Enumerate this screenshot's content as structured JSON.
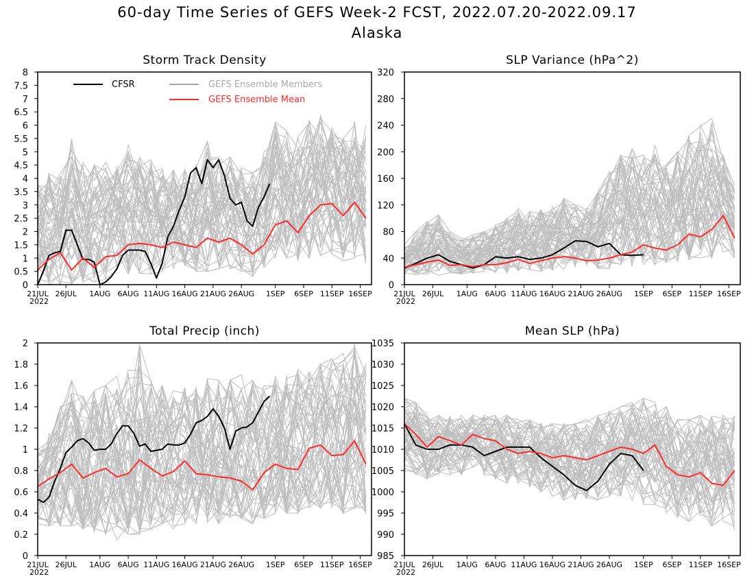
{
  "title": "60-day Time Series of GEFS Week-2 FCST, 2022.07.20-2022.09.17",
  "subtitle": "Alaska",
  "colors": {
    "cfsr": "#000000",
    "members": "#a9a9a9",
    "mean": "#ff2a2a"
  },
  "x_tick_labels": [
    "21JUL",
    "26JUL",
    "1AUG",
    "6AUG",
    "11AUG",
    "16AUG",
    "21AUG",
    "26AUG",
    "1SEP",
    "6SEP",
    "11SEP",
    "16SEP"
  ],
  "x_tick_days": [
    0,
    5,
    11,
    16,
    21,
    26,
    31,
    36,
    42,
    47,
    52,
    57
  ],
  "x_year_label": "2022",
  "legend": {
    "cfsr": "CFSR",
    "members": "GEFS Ensemble Members",
    "mean": "GEFS Ensemble Mean"
  },
  "chart_data": [
    {
      "type": "line",
      "title": "Storm Track Density",
      "ylim": [
        0,
        8
      ],
      "yticks": [
        "0",
        "0.5",
        "1",
        "1.5",
        "2",
        "2.5",
        "3",
        "3.5",
        "4",
        "4.5",
        "5",
        "5.5",
        "6",
        "6.5",
        "7",
        "7.5",
        "8"
      ],
      "ytick_values": [
        0,
        0.5,
        1,
        1.5,
        2,
        2.5,
        3,
        3.5,
        4,
        4.5,
        5,
        5.5,
        6,
        6.5,
        7,
        7.5,
        8
      ],
      "x_days": [
        0,
        2,
        4,
        6,
        8,
        10,
        12,
        14,
        16,
        18,
        20,
        22,
        24,
        26,
        28,
        30,
        32,
        34,
        36,
        38,
        40,
        42,
        44,
        46,
        48,
        50,
        52,
        54,
        56,
        58
      ],
      "series": [
        {
          "name": "CFSR",
          "x": [
            0,
            1,
            2,
            3,
            4,
            5,
            6,
            7,
            8,
            9,
            10,
            11,
            12,
            13,
            14,
            15,
            16,
            17,
            18,
            19,
            20,
            21,
            22,
            23,
            24,
            25,
            26,
            27,
            28,
            29,
            30,
            31,
            32,
            33,
            34,
            35,
            36,
            37,
            38,
            39,
            40,
            41,
            42
          ],
          "values": [
            0,
            0.5,
            1.1,
            1.2,
            1.25,
            2.05,
            2.05,
            1.5,
            0.95,
            0.95,
            0.85,
            0,
            0.1,
            0.3,
            0.6,
            1.1,
            1.3,
            1.3,
            1.3,
            1.25,
            0.8,
            0.25,
            0.8,
            1.8,
            2.2,
            2.8,
            3.3,
            4.2,
            4.4,
            3.8,
            4.7,
            4.4,
            4.7,
            4.1,
            3.25,
            3.0,
            3.1,
            2.4,
            2.2,
            2.9,
            3.3,
            3.8,
            null
          ]
        },
        {
          "name": "GEFS Ensemble Mean",
          "x": [
            0,
            2,
            4,
            6,
            8,
            10,
            12,
            14,
            16,
            18,
            20,
            22,
            24,
            26,
            28,
            30,
            32,
            34,
            36,
            38,
            40,
            42,
            44,
            46,
            48,
            50,
            52,
            54,
            56,
            58
          ],
          "values": [
            0.55,
            0.95,
            1.2,
            0.55,
            1.0,
            0.65,
            1.05,
            1.1,
            1.5,
            1.55,
            1.5,
            1.4,
            1.6,
            1.5,
            1.4,
            1.75,
            1.6,
            1.75,
            1.5,
            1.15,
            1.5,
            2.25,
            2.4,
            1.95,
            2.6,
            3.0,
            3.05,
            2.6,
            3.1,
            2.5
          ]
        }
      ],
      "members_range": {
        "low": [
          0,
          0,
          0,
          0,
          0.1,
          0.1,
          0.2,
          0.3,
          0.4,
          0.4,
          0.4,
          0.5,
          0.6,
          0.7,
          0.5,
          0.5,
          0.6,
          0.6,
          0.5,
          0.3,
          0.5,
          0.9,
          1.0,
          0.9,
          1.0,
          1.1,
          1.0,
          0.9,
          1.0,
          0.8
        ],
        "high": [
          3.8,
          4.2,
          4.5,
          5.5,
          4.6,
          4.5,
          4.6,
          4.7,
          5.3,
          4.9,
          4.7,
          4.4,
          4.4,
          4.4,
          4.6,
          5.4,
          4.8,
          4.8,
          4.4,
          4.2,
          5.0,
          6.1,
          5.8,
          5.6,
          6.2,
          6.6,
          5.9,
          5.5,
          6.2,
          6.0
        ]
      }
    },
    {
      "type": "line",
      "title": "SLP Variance (hPa^2)",
      "ylim": [
        0,
        320
      ],
      "yticks": [
        "0",
        "40",
        "80",
        "120",
        "160",
        "200",
        "240",
        "280",
        "320"
      ],
      "ytick_values": [
        0,
        40,
        80,
        120,
        160,
        200,
        240,
        280,
        320
      ],
      "x_days": [
        0,
        2,
        4,
        6,
        8,
        10,
        12,
        14,
        16,
        18,
        20,
        22,
        24,
        26,
        28,
        30,
        32,
        34,
        36,
        38,
        40,
        42,
        44,
        46,
        48,
        50,
        52,
        54,
        56,
        58
      ],
      "series": [
        {
          "name": "CFSR",
          "x": [
            0,
            2,
            4,
            6,
            8,
            10,
            12,
            14,
            16,
            18,
            20,
            22,
            24,
            26,
            28,
            30,
            32,
            34,
            36,
            38,
            40,
            42
          ],
          "values": [
            25,
            32,
            40,
            45,
            35,
            30,
            25,
            30,
            42,
            40,
            42,
            38,
            40,
            45,
            55,
            66,
            65,
            57,
            62,
            45,
            44,
            45
          ]
        },
        {
          "name": "GEFS Ensemble Mean",
          "x": [
            0,
            2,
            4,
            6,
            8,
            10,
            12,
            14,
            16,
            18,
            20,
            22,
            24,
            26,
            28,
            30,
            32,
            34,
            36,
            38,
            40,
            42,
            44,
            46,
            48,
            50,
            52,
            54,
            56,
            58
          ],
          "values": [
            26,
            30,
            34,
            37,
            29,
            30,
            27,
            30,
            30,
            33,
            38,
            32,
            36,
            40,
            42,
            40,
            36,
            37,
            40,
            45,
            49,
            60,
            55,
            52,
            60,
            76,
            72,
            83,
            104,
            70
          ]
        }
      ],
      "members_range": {
        "low": [
          12,
          14,
          15,
          14,
          16,
          16,
          16,
          18,
          18,
          18,
          20,
          20,
          20,
          22,
          22,
          22,
          24,
          24,
          24,
          24,
          26,
          30,
          30,
          32,
          34,
          38,
          40,
          40,
          42,
          40
        ],
        "high": [
          60,
          80,
          95,
          105,
          80,
          70,
          75,
          80,
          90,
          100,
          120,
          110,
          115,
          125,
          130,
          120,
          115,
          140,
          175,
          195,
          205,
          195,
          210,
          180,
          200,
          225,
          240,
          250,
          195,
          150
        ]
      }
    },
    {
      "type": "line",
      "title": "Total Precip (inch)",
      "ylim": [
        0,
        2
      ],
      "yticks": [
        "0",
        "0.2",
        "0.4",
        "0.6",
        "0.8",
        "1",
        "1.2",
        "1.4",
        "1.6",
        "1.8",
        "2"
      ],
      "ytick_values": [
        0,
        0.2,
        0.4,
        0.6,
        0.8,
        1,
        1.2,
        1.4,
        1.6,
        1.8,
        2
      ],
      "x_days": [
        0,
        2,
        4,
        6,
        8,
        10,
        12,
        14,
        16,
        18,
        20,
        22,
        24,
        26,
        28,
        30,
        32,
        34,
        36,
        38,
        40,
        42,
        44,
        46,
        48,
        50,
        52,
        54,
        56,
        58
      ],
      "series": [
        {
          "name": "CFSR",
          "x": [
            0,
            1,
            2,
            3,
            4,
            5,
            6,
            7,
            8,
            9,
            10,
            11,
            12,
            13,
            14,
            15,
            16,
            17,
            18,
            19,
            20,
            21,
            22,
            23,
            24,
            25,
            26,
            27,
            28,
            29,
            30,
            31,
            32,
            33,
            34,
            35,
            36,
            37,
            38,
            39,
            40,
            41,
            42
          ],
          "values": [
            0.53,
            0.5,
            0.55,
            0.7,
            0.82,
            0.97,
            1.02,
            1.08,
            1.1,
            1.06,
            0.99,
            1.0,
            1.0,
            1.05,
            1.15,
            1.22,
            1.22,
            1.15,
            1.03,
            1.05,
            0.98,
            0.99,
            1.0,
            1.05,
            1.04,
            1.04,
            1.06,
            1.14,
            1.25,
            1.27,
            1.31,
            1.38,
            1.31,
            1.2,
            1.0,
            1.17,
            1.2,
            1.21,
            1.25,
            1.35,
            1.45,
            1.5,
            null
          ]
        },
        {
          "name": "GEFS Ensemble Mean",
          "x": [
            0,
            2,
            4,
            6,
            8,
            10,
            12,
            14,
            16,
            18,
            20,
            22,
            24,
            26,
            28,
            30,
            32,
            34,
            36,
            38,
            40,
            42,
            44,
            46,
            48,
            50,
            52,
            54,
            56,
            58
          ],
          "values": [
            0.65,
            0.72,
            0.78,
            0.86,
            0.73,
            0.78,
            0.82,
            0.74,
            0.77,
            0.9,
            0.82,
            0.75,
            0.79,
            0.89,
            0.77,
            0.76,
            0.74,
            0.73,
            0.7,
            0.62,
            0.78,
            0.86,
            0.82,
            0.81,
            1.01,
            1.04,
            0.94,
            0.95,
            1.08,
            0.86
          ]
        }
      ],
      "members_range": {
        "low": [
          0.3,
          0.28,
          0.28,
          0.28,
          0.25,
          0.22,
          0.2,
          0.15,
          0.2,
          0.2,
          0.25,
          0.3,
          0.25,
          0.3,
          0.3,
          0.3,
          0.3,
          0.35,
          0.35,
          0.3,
          0.35,
          0.4,
          0.4,
          0.4,
          0.45,
          0.45,
          0.45,
          0.4,
          0.45,
          0.4
        ],
        "high": [
          1.0,
          1.2,
          1.4,
          1.65,
          1.5,
          1.55,
          1.6,
          1.7,
          1.75,
          2.0,
          1.65,
          1.6,
          1.55,
          1.6,
          1.6,
          1.7,
          1.65,
          1.65,
          1.7,
          1.65,
          1.65,
          1.7,
          1.7,
          1.75,
          1.8,
          1.8,
          1.85,
          1.9,
          2.0,
          1.8
        ]
      }
    },
    {
      "type": "line",
      "title": "Mean SLP (hPa)",
      "ylim": [
        985,
        1035
      ],
      "yticks": [
        "985",
        "990",
        "995",
        "1000",
        "1005",
        "1010",
        "1015",
        "1020",
        "1025",
        "1030",
        "1035"
      ],
      "ytick_values": [
        985,
        990,
        995,
        1000,
        1005,
        1010,
        1015,
        1020,
        1025,
        1030,
        1035
      ],
      "x_days": [
        0,
        2,
        4,
        6,
        8,
        10,
        12,
        14,
        16,
        18,
        20,
        22,
        24,
        26,
        28,
        30,
        32,
        34,
        36,
        38,
        40,
        42,
        44,
        46,
        48,
        50,
        52,
        54,
        56,
        58
      ],
      "series": [
        {
          "name": "CFSR",
          "x": [
            0,
            2,
            4,
            6,
            8,
            10,
            12,
            14,
            16,
            18,
            20,
            22,
            24,
            26,
            28,
            30,
            32,
            34,
            36,
            38,
            40,
            42
          ],
          "values": [
            1016,
            1011,
            1010,
            1010,
            1011,
            1011,
            1010.5,
            1008.5,
            1009.5,
            1010.5,
            1010.5,
            1010.5,
            1008,
            1006,
            1004,
            1001.5,
            1000.3,
            1002.5,
            1006.5,
            1009,
            1008.5,
            1005
          ]
        },
        {
          "name": "GEFS Ensemble Mean",
          "x": [
            0,
            2,
            4,
            6,
            8,
            10,
            12,
            14,
            16,
            18,
            20,
            22,
            24,
            26,
            28,
            30,
            32,
            34,
            36,
            38,
            40,
            42,
            44,
            46,
            48,
            50,
            52,
            54,
            56,
            58
          ],
          "values": [
            1016,
            1013.5,
            1010.5,
            1013,
            1012,
            1011,
            1013.5,
            1012.5,
            1012,
            1010,
            1009,
            1009.5,
            1009,
            1008,
            1008.5,
            1008,
            1007.5,
            1008.5,
            1009.5,
            1010.5,
            1010,
            1009,
            1011,
            1006,
            1004,
            1003.5,
            1004.5,
            1002,
            1001.5,
            1005
          ]
        }
      ],
      "members_range": {
        "low": [
          1005,
          1004,
          1003,
          1004,
          1004,
          1004,
          1005,
          1004,
          1003,
          1002,
          1002,
          1001,
          1000,
          999,
          998,
          998,
          998,
          998,
          999,
          999,
          998,
          997,
          997,
          995,
          994,
          993,
          993,
          992,
          992,
          991
        ],
        "high": [
          1022,
          1021,
          1018,
          1018,
          1018,
          1018,
          1018,
          1018,
          1018,
          1018,
          1017,
          1017,
          1016,
          1016,
          1016,
          1016,
          1017,
          1018,
          1019,
          1020,
          1021,
          1022,
          1021,
          1020,
          1017,
          1017,
          1018,
          1018,
          1018,
          1018
        ]
      }
    }
  ]
}
